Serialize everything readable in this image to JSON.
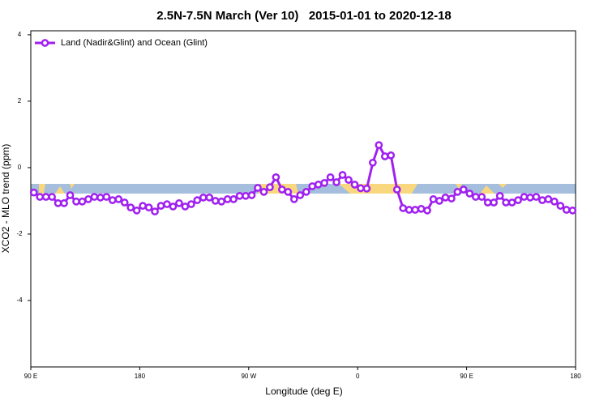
{
  "chart_data": {
    "type": "line",
    "title": "2.5N-7.5N March (Ver 10)   2015-01-01 to 2020-12-18",
    "xlabel": "Longitude (deg E)",
    "ylabel": "XCO2 - MLO trend (ppm)",
    "x": [
      92.5,
      97.5,
      102.5,
      107.5,
      112.5,
      117.5,
      122.5,
      127.5,
      132.5,
      137.5,
      142.5,
      147.5,
      152.5,
      157.5,
      162.5,
      167.5,
      172.5,
      177.5,
      182.5,
      187.5,
      192.5,
      197.5,
      202.5,
      207.5,
      212.5,
      217.5,
      222.5,
      227.5,
      232.5,
      237.5,
      242.5,
      247.5,
      252.5,
      257.5,
      262.5,
      267.5,
      272.5,
      277.5,
      282.5,
      287.5,
      292.5,
      297.5,
      302.5,
      307.5,
      312.5,
      317.5,
      322.5,
      327.5,
      332.5,
      337.5,
      342.5,
      347.5,
      352.5,
      357.5,
      362.5,
      367.5,
      372.5,
      377.5,
      382.5,
      387.5,
      392.5,
      397.5,
      402.5,
      407.5,
      412.5,
      417.5,
      422.5,
      427.5,
      432.5,
      437.5,
      442.5,
      447.5,
      452.5,
      457.5,
      462.5,
      467.5,
      472.5,
      477.5,
      482.5,
      487.5,
      492.5,
      497.5,
      502.5,
      507.5,
      512.5,
      517.5,
      522.5,
      527.5,
      532.5,
      537.5
    ],
    "series": [
      {
        "name": "Land (Nadir&Glint) and Ocean (Glint)",
        "color": "#a020f0",
        "values": [
          -0.75,
          -0.88,
          -0.88,
          -0.88,
          -1.07,
          -1.07,
          -0.83,
          -1.02,
          -1.02,
          -0.95,
          -0.88,
          -0.9,
          -0.88,
          -0.98,
          -0.95,
          -1.05,
          -1.2,
          -1.29,
          -1.15,
          -1.2,
          -1.32,
          -1.15,
          -1.1,
          -1.17,
          -1.07,
          -1.17,
          -1.1,
          -0.98,
          -0.9,
          -0.9,
          -1.0,
          -1.02,
          -0.95,
          -0.95,
          -0.85,
          -0.85,
          -0.83,
          -0.61,
          -0.73,
          -0.59,
          -0.29,
          -0.66,
          -0.73,
          -0.95,
          -0.83,
          -0.73,
          -0.56,
          -0.51,
          -0.46,
          -0.29,
          -0.44,
          -0.22,
          -0.37,
          -0.51,
          -0.62,
          -0.63,
          0.15,
          0.68,
          0.34,
          0.37,
          -0.66,
          -1.22,
          -1.27,
          -1.27,
          -1.24,
          -1.29,
          -0.95,
          -1.0,
          -0.9,
          -0.93,
          -0.73,
          -0.66,
          -0.78,
          -0.88,
          -0.88,
          -1.05,
          -1.05,
          -0.85,
          -1.05,
          -1.05,
          -0.98,
          -0.88,
          -0.9,
          -0.88,
          -0.98,
          -0.95,
          -1.02,
          -1.15,
          -1.27,
          -1.29
        ]
      }
    ],
    "xlim": [
      90,
      540
    ],
    "ylim": [
      -6,
      4.12
    ],
    "xticks": [
      {
        "value": 90,
        "label": "90 E"
      },
      {
        "value": 180,
        "label": "180"
      },
      {
        "value": 270,
        "label": "90 W"
      },
      {
        "value": 360,
        "label": "0"
      },
      {
        "value": 450,
        "label": "90 E"
      },
      {
        "value": 540,
        "label": "180"
      }
    ],
    "yticks": [
      -4,
      -2,
      0,
      2,
      4
    ],
    "legend": "upper left"
  }
}
